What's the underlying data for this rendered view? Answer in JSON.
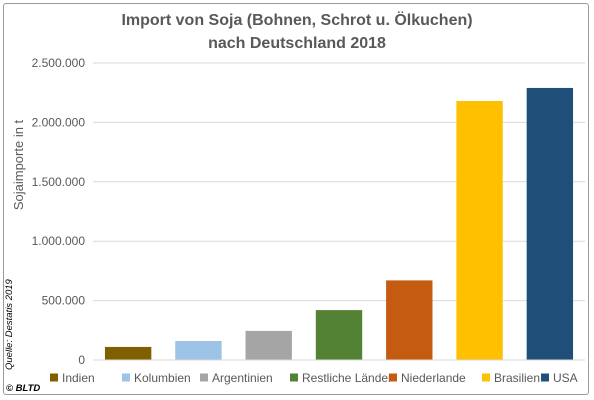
{
  "chart_data": {
    "type": "bar",
    "title": "Import von Soja (Bohnen, Schrot u. Ölkuchen)",
    "subtitle": "nach Deutschland 2018",
    "xlabel": "",
    "ylabel": "Sojaimporte in t",
    "ylim": [
      0,
      2500000
    ],
    "yticks": [
      0,
      500000,
      1000000,
      1500000,
      2000000,
      2500000
    ],
    "ytick_labels": [
      "0",
      "500.000",
      "1.000.000",
      "1.500.000",
      "2.000.000",
      "2.500.000"
    ],
    "grid": true,
    "legend_position": "bottom",
    "categories": [
      "Indien",
      "Kolumbien",
      "Argentinien",
      "Restliche Länder",
      "Niederlande",
      "Brasilien",
      "USA"
    ],
    "values": [
      110000,
      160000,
      245000,
      420000,
      670000,
      2180000,
      2290000
    ],
    "colors": [
      "#7f6000",
      "#9dc3e6",
      "#a5a5a5",
      "#548235",
      "#c55a11",
      "#ffc000",
      "#1f4e79"
    ]
  },
  "source_note": "Quelle: Destatis 2019",
  "copyright": "© BLTD"
}
